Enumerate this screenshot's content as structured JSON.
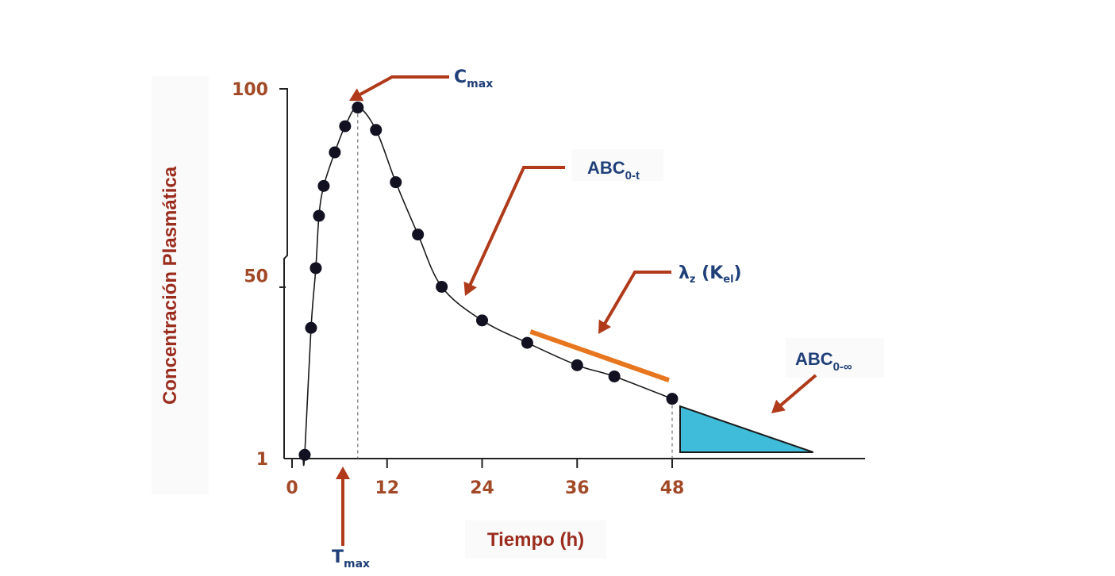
{
  "chart_data": {
    "type": "line",
    "title": "",
    "xlabel": "Tiempo (h)",
    "ylabel": "Concentración Plasmática",
    "x_ticks": [
      0,
      12,
      24,
      36,
      48
    ],
    "x_tick_labels": [
      "0",
      "12",
      "24",
      "36",
      "48"
    ],
    "y_ticks": [
      1,
      50,
      100
    ],
    "y_tick_labels": [
      "1",
      "50",
      "100"
    ],
    "xlim": [
      0,
      62
    ],
    "ylim": [
      1,
      100
    ],
    "grid": false,
    "series": [
      {
        "x": [
          1.6,
          2.4,
          3.0,
          3.4,
          4.0,
          5.4,
          6.7,
          8.3,
          10.6,
          13.1,
          15.9,
          18.9,
          24.0,
          29.7,
          36.0,
          40.7,
          48.0
        ],
        "y": [
          2,
          36,
          52,
          66,
          74,
          83,
          90,
          95,
          89,
          75,
          61,
          47,
          38,
          32,
          26,
          23,
          17
        ]
      }
    ],
    "tmax": 8.3,
    "cmax": 95,
    "lambda_segment": {
      "x": [
        29.7,
        48.0
      ],
      "y": [
        35,
        22
      ]
    },
    "extrapolated_area": {
      "x": [
        48.0,
        62.0
      ],
      "y_at_start": 15
    },
    "annotations": {
      "cmax": {
        "main": "C",
        "sub": "max"
      },
      "tmax": {
        "main": "T",
        "sub": "max"
      },
      "abc_0t": {
        "main": "ABC",
        "sub": "0-t"
      },
      "lambda_z": {
        "main": "λ",
        "sub1": "z",
        "mid": " (K",
        "sub2": "el",
        "tail": ")"
      },
      "abc_0inf": {
        "main": "ABC",
        "sub": "0-∞"
      }
    },
    "colors": {
      "axis_labels": "#9b2d1f",
      "ticks": "#a24a28",
      "arrows": "#b03a1a",
      "lambda_line": "#e8761f",
      "area_fill": "#3fbcd9",
      "callouts": "#1f3f79",
      "points": "#111122"
    }
  }
}
